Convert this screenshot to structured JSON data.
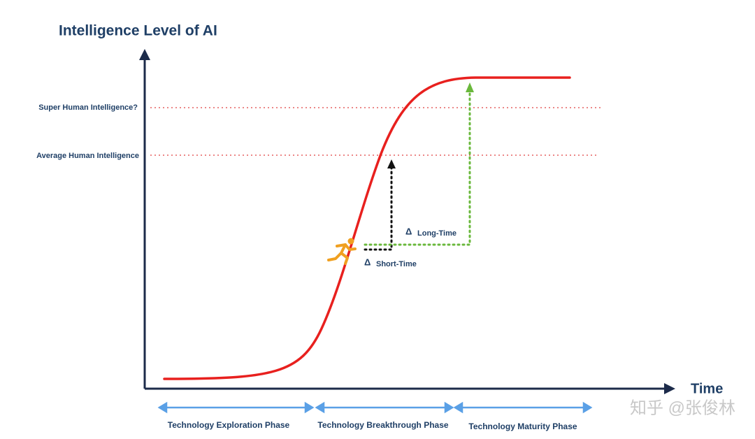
{
  "title": "Intelligence Level of AI",
  "x_axis_label": "Time",
  "levels": [
    "Super Human Intelligence?",
    "Average Human Intelligence"
  ],
  "annotations": [
    {
      "symbol": "Δ",
      "label": "Long-Time"
    },
    {
      "symbol": "Δ",
      "label": "Short-Time"
    }
  ],
  "phases": [
    "Technology Exploration Phase",
    "Technology Breakthrough Phase",
    "Technology Maturity Phase"
  ],
  "watermark": "知乎 @张俊林"
}
